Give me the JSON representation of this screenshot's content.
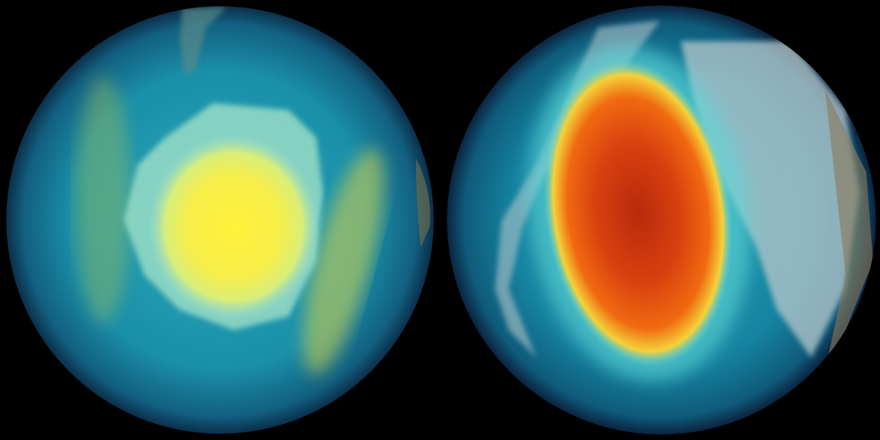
{
  "background": "#000000",
  "globes": [
    {
      "view": "south-pole",
      "colors": {
        "ocean": "#1a8fa8",
        "rim": "#0b2f4a",
        "core": "#fff23a",
        "ring": "#d9d24a",
        "land": "#9fe0c8"
      }
    },
    {
      "view": "north-pole",
      "colors": {
        "ocean": "#1583a0",
        "rim": "#0a2440",
        "core": "#c8300e",
        "mid": "#f06a10",
        "ring": "#f4d23a",
        "halo": "#5fd8d8",
        "land": "#b8c8cc"
      }
    }
  ]
}
